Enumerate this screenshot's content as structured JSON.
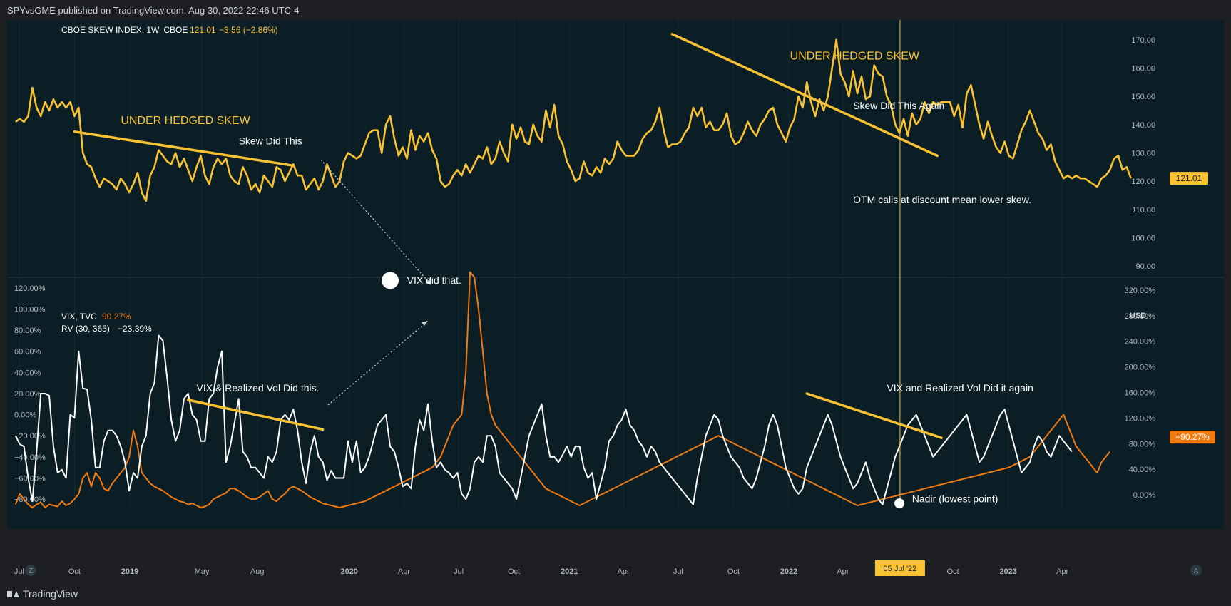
{
  "header": {
    "published": "SPYvsGME published on TradingView.com, Aug 30, 2022 22:46 UTC-4"
  },
  "footer": {
    "brand": "TradingView"
  },
  "colors": {
    "skew": "#f9c232",
    "vix": "#ffffff",
    "rv": "#f07a12",
    "trend": "#f9c232",
    "background": "#0b1e26"
  },
  "icons": {
    "brand": "tradingview-logo-icon",
    "zoom": "zoom-icon",
    "auto": "auto-scale-icon"
  },
  "controls": {
    "zoom_label": "Z",
    "auto_label": "A"
  },
  "chart_data": [
    {
      "type": "line",
      "legend": {
        "symbol": "CBOE SKEW INDEX, 1W, CBOE",
        "value": "121.01",
        "change": "−3.56 (−2.86%)"
      },
      "price_tag": "121.01",
      "y_ticks": [
        "170.00",
        "160.00",
        "150.00",
        "140.00",
        "130.00",
        "120.00",
        "110.00",
        "100.00",
        "90.00"
      ],
      "ylim": [
        86,
        177
      ],
      "series": [
        {
          "name": "CBOE SKEW INDEX",
          "x_start": "2018-06-25",
          "step_weeks": 1,
          "values": [
            141,
            142,
            141,
            143,
            153,
            146,
            143,
            148,
            145,
            149,
            146,
            148,
            146,
            148,
            143,
            146,
            130,
            126,
            125,
            121,
            118,
            121,
            120,
            119,
            117,
            121,
            119,
            116,
            119,
            123,
            116,
            113,
            122,
            125,
            131,
            129,
            127,
            126,
            130,
            125,
            128,
            124,
            120,
            125,
            129,
            122,
            119,
            125,
            128,
            126,
            128,
            122,
            120,
            119,
            125,
            122,
            117,
            119,
            116,
            122,
            120,
            118,
            125,
            124,
            120,
            123,
            126,
            122,
            122,
            117,
            119,
            121,
            117,
            120,
            126,
            122,
            118,
            120,
            127,
            130,
            129,
            128,
            129,
            133,
            137,
            138,
            138,
            130,
            140,
            143,
            135,
            129,
            132,
            128,
            138,
            131,
            136,
            134,
            137,
            131,
            128,
            120,
            118,
            119,
            122,
            124,
            122,
            126,
            123,
            126,
            129,
            128,
            132,
            126,
            128,
            134,
            130,
            127,
            140,
            135,
            139,
            134,
            133,
            140,
            136,
            134,
            145,
            139,
            147,
            136,
            133,
            127,
            124,
            120,
            121,
            127,
            123,
            122,
            125,
            123,
            128,
            126,
            128,
            134,
            131,
            129,
            129,
            129,
            131,
            135,
            137,
            138,
            141,
            146,
            138,
            132,
            133,
            133,
            134,
            137,
            139,
            146,
            143,
            146,
            139,
            141,
            138,
            138,
            140,
            144,
            136,
            133,
            134,
            137,
            141,
            138,
            136,
            140,
            142,
            145,
            146,
            140,
            137,
            134,
            139,
            142,
            150,
            146,
            155,
            148,
            143,
            149,
            145,
            150,
            160,
            170,
            158,
            155,
            150,
            159,
            151,
            157,
            149,
            150,
            161,
            158,
            157,
            150,
            147,
            140,
            137,
            142,
            136,
            144,
            140,
            142,
            148,
            144,
            148,
            147,
            148,
            148,
            148,
            143,
            147,
            139,
            151,
            154,
            147,
            140,
            135,
            141,
            136,
            132,
            130,
            134,
            129,
            128,
            133,
            138,
            141,
            145,
            141,
            137,
            135,
            131,
            133,
            127,
            124,
            121,
            122,
            121,
            122,
            121,
            121,
            120,
            119,
            118,
            121,
            122,
            124,
            128,
            129,
            124,
            125,
            121
          ]
        }
      ],
      "trendlines": [
        {
          "from": [
            "2018-10-01",
            137.5
          ],
          "to": [
            "2019-09-30",
            125.5
          ]
        },
        {
          "from": [
            "2021-06-21",
            172
          ],
          "to": [
            "2022-09-05",
            129
          ]
        }
      ],
      "annotations": [
        {
          "text": "UNDER HEDGED SKEW",
          "at": [
            "2018-12-17",
            140.2
          ],
          "color": "#f9c232",
          "size": "large"
        },
        {
          "text": "Skew Did This",
          "at": [
            "2019-07-01",
            133.0
          ],
          "color": "#ffffff"
        },
        {
          "text": "UNDER HEDGED SKEW",
          "at": [
            "2022-01-03",
            163.0
          ],
          "color": "#f9c232",
          "size": "large"
        },
        {
          "text": "Skew Did This Again",
          "at": [
            "2022-04-18",
            145.5
          ],
          "color": "#ffffff"
        },
        {
          "text": "OTM calls at discount mean lower skew.",
          "at": [
            "2022-04-18",
            112.2
          ],
          "color": "#ffffff"
        }
      ]
    },
    {
      "type": "line",
      "legend": {
        "vix_label": "VIX, TVC",
        "vix_value": "90.27%",
        "rv_label": "RV (30, 365)",
        "rv_value": "−23.39%"
      },
      "unit": "USD",
      "price_tag": "+90.27%",
      "y_ticks_left": [
        "120.00%",
        "100.00%",
        "80.00%",
        "60.00%",
        "40.00%",
        "20.00%",
        "0.00%",
        "−20.00%",
        "−40.00%",
        "−60.00%",
        "−80.00%"
      ],
      "y_ticks_right": [
        "320.00%",
        "280.00%",
        "240.00%",
        "200.00%",
        "160.00%",
        "120.00%",
        "80.00%",
        "40.00%",
        "0.00%"
      ],
      "ylim_left": [
        -88,
        130
      ],
      "series": [
        {
          "name": "VIX",
          "x_start": "2018-06-25",
          "step_weeks": 1,
          "values": [
            -20,
            -28,
            -30,
            -60,
            -82,
            -35,
            20,
            20,
            18,
            -30,
            -55,
            -52,
            -60,
            0,
            -3,
            60,
            25,
            24,
            -5,
            -50,
            -50,
            -25,
            -15,
            -15,
            -20,
            -30,
            -45,
            -72,
            -55,
            -60,
            -30,
            -20,
            20,
            30,
            75,
            70,
            35,
            -5,
            -25,
            -15,
            15,
            20,
            0,
            -5,
            -25,
            -25,
            15,
            20,
            45,
            60,
            -45,
            -30,
            -8,
            15,
            -35,
            -40,
            -50,
            -50,
            -55,
            -60,
            -40,
            -45,
            -35,
            -5,
            0,
            -5,
            5,
            -15,
            -45,
            -65,
            -35,
            -20,
            -40,
            -45,
            -62,
            -53,
            -60,
            -60,
            -60,
            -25,
            -45,
            -25,
            -55,
            -50,
            -40,
            -25,
            -10,
            -5,
            0,
            -30,
            -35,
            -50,
            -68,
            -65,
            -70,
            -30,
            -5,
            -15,
            10,
            -25,
            -50,
            -45,
            -52,
            -55,
            -60,
            -55,
            -75,
            -80,
            -70,
            -45,
            -40,
            -45,
            -20,
            -20,
            -30,
            -55,
            -60,
            -65,
            -70,
            -80,
            -60,
            -40,
            -20,
            -10,
            0,
            10,
            -20,
            -40,
            -40,
            -45,
            -38,
            -30,
            -40,
            -30,
            -30,
            -50,
            -60,
            -55,
            -80,
            -65,
            -50,
            -25,
            -20,
            -10,
            -5,
            5,
            -10,
            -15,
            -25,
            -30,
            -40,
            -30,
            -35,
            -45,
            -50,
            -55,
            -60,
            -65,
            -70,
            -75,
            -80,
            -85,
            -60,
            -40,
            -20,
            -10,
            0,
            -5,
            -20,
            -30,
            -40,
            -45,
            -50,
            -60,
            -65,
            -70,
            -60,
            -45,
            -30,
            -10,
            0,
            -10,
            -30,
            -50,
            -60,
            -70,
            -75,
            -70,
            -50,
            -40,
            -30,
            -20,
            -10,
            0,
            -10,
            -25,
            -40,
            -50,
            -60,
            -70,
            -65,
            -55,
            -45,
            -60,
            -70,
            -80,
            -85,
            -70,
            -55,
            -40,
            -30,
            -20,
            -10,
            -5,
            0,
            -10,
            -20,
            -30,
            -40,
            -35,
            -30,
            -25,
            -20,
            -15,
            -10,
            -5,
            0,
            -15,
            -30,
            -45,
            -40,
            -30,
            -20,
            -10,
            0,
            5,
            -10,
            -25,
            -40,
            -55,
            -50,
            -45,
            -30,
            -20,
            -25,
            -35,
            -40,
            -30,
            -20,
            -25,
            -30,
            -35
          ]
        },
        {
          "name": "RV (30, 365)",
          "x_start": "2018-06-25",
          "step_weeks": 1,
          "values": [
            -85,
            -75,
            -80,
            -85,
            -88,
            -85,
            -83,
            -88,
            -85,
            -86,
            -87,
            -82,
            -86,
            -84,
            -80,
            -75,
            -60,
            -55,
            -68,
            -55,
            -60,
            -70,
            -72,
            -65,
            -60,
            -55,
            -50,
            -40,
            -15,
            -30,
            -55,
            -60,
            -65,
            -68,
            -70,
            -72,
            -75,
            -78,
            -80,
            -82,
            -83,
            -85,
            -84,
            -86,
            -88,
            -87,
            -85,
            -80,
            -78,
            -76,
            -74,
            -70,
            -70,
            -72,
            -75,
            -78,
            -80,
            -80,
            -78,
            -75,
            -72,
            -80,
            -82,
            -78,
            -75,
            -70,
            -68,
            -70,
            -72,
            -75,
            -78,
            -80,
            -82,
            -84,
            -85,
            -86,
            -87,
            -88,
            -87,
            -86,
            -85,
            -84,
            -83,
            -82,
            -80,
            -78,
            -76,
            -74,
            -72,
            -70,
            -68,
            -66,
            -64,
            -62,
            -60,
            -58,
            -56,
            -54,
            -52,
            -50,
            -45,
            -40,
            -30,
            -20,
            -10,
            -5,
            0,
            40,
            135,
            130,
            100,
            60,
            20,
            0,
            -10,
            -15,
            -20,
            -25,
            -30,
            -35,
            -40,
            -45,
            -50,
            -55,
            -60,
            -65,
            -70,
            -72,
            -74,
            -76,
            -78,
            -80,
            -82,
            -84,
            -86,
            -84,
            -82,
            -80,
            -78,
            -76,
            -74,
            -72,
            -70,
            -68,
            -66,
            -64,
            -62,
            -60,
            -58,
            -56,
            -54,
            -52,
            -50,
            -48,
            -46,
            -44,
            -42,
            -40,
            -38,
            -36,
            -34,
            -32,
            -30,
            -28,
            -26,
            -24,
            -22,
            -20,
            -22,
            -24,
            -26,
            -28,
            -30,
            -32,
            -34,
            -36,
            -38,
            -40,
            -42,
            -44,
            -46,
            -48,
            -50,
            -52,
            -54,
            -56,
            -58,
            -60,
            -62,
            -64,
            -66,
            -68,
            -70,
            -72,
            -74,
            -76,
            -78,
            -80,
            -82,
            -84,
            -86,
            -85,
            -84,
            -83,
            -82,
            -81,
            -80,
            -79,
            -78,
            -77,
            -76,
            -75,
            -74,
            -73,
            -72,
            -71,
            -70,
            -69,
            -68,
            -67,
            -66,
            -65,
            -64,
            -63,
            -62,
            -61,
            -60,
            -59,
            -58,
            -57,
            -56,
            -55,
            -54,
            -53,
            -52,
            -51,
            -50,
            -48,
            -46,
            -44,
            -42,
            -40,
            -35,
            -30,
            -25,
            -20,
            -15,
            -10,
            -5,
            0,
            -10,
            -20,
            -30,
            -35,
            -40,
            -45,
            -50,
            -55,
            -45,
            -40,
            -35
          ]
        }
      ],
      "trendlines": [
        {
          "from": [
            "2019-04-08",
            14
          ],
          "to": [
            "2019-11-18",
            -14
          ]
        },
        {
          "from": [
            "2022-01-31",
            20
          ],
          "to": [
            "2022-09-12",
            -22
          ]
        }
      ],
      "markers": [
        {
          "at": [
            "2020-03-09",
            127
          ],
          "style": "filled-circle"
        },
        {
          "at": [
            "2022-07-04",
            -84
          ],
          "style": "filled-circle"
        }
      ],
      "annotations": [
        {
          "text": "VIX did that.",
          "at": [
            "2020-04-06",
            124
          ],
          "color": "#ffffff"
        },
        {
          "text": "VIX & Realized Vol Did this.",
          "at": [
            "2019-04-22",
            22
          ],
          "color": "#ffffff"
        },
        {
          "text": "VIX and Realized Vol Did it again",
          "at": [
            "2022-06-13",
            22
          ],
          "color": "#ffffff"
        },
        {
          "text": "Nadir (lowest point)",
          "at": [
            "2022-07-25",
            -83
          ],
          "color": "#ffffff"
        }
      ]
    }
  ],
  "x_axis": {
    "ticks": [
      {
        "label": "Jul",
        "date": "2018-07-01",
        "bold": false
      },
      {
        "label": "Oct",
        "date": "2018-10-01",
        "bold": false
      },
      {
        "label": "2019",
        "date": "2019-01-01",
        "bold": true
      },
      {
        "label": "May",
        "date": "2019-05-01",
        "bold": false
      },
      {
        "label": "Aug",
        "date": "2019-08-01",
        "bold": false
      },
      {
        "label": "2020",
        "date": "2020-01-01",
        "bold": true
      },
      {
        "label": "Apr",
        "date": "2020-04-01",
        "bold": false
      },
      {
        "label": "Jul",
        "date": "2020-07-01",
        "bold": false
      },
      {
        "label": "Oct",
        "date": "2020-10-01",
        "bold": false
      },
      {
        "label": "2021",
        "date": "2021-01-01",
        "bold": true
      },
      {
        "label": "Apr",
        "date": "2021-04-01",
        "bold": false
      },
      {
        "label": "Jul",
        "date": "2021-07-01",
        "bold": false
      },
      {
        "label": "Oct",
        "date": "2021-10-01",
        "bold": false
      },
      {
        "label": "2022",
        "date": "2022-01-01",
        "bold": true
      },
      {
        "label": "Apr",
        "date": "2022-04-01",
        "bold": false
      },
      {
        "label": "Oct",
        "date": "2022-10-01",
        "bold": false
      },
      {
        "label": "2023",
        "date": "2023-01-01",
        "bold": true
      },
      {
        "label": "Apr",
        "date": "2023-04-01",
        "bold": false
      }
    ],
    "crosshair": {
      "date": "2022-07-05",
      "label": "05 Jul '22"
    },
    "range": [
      "2018-06-11",
      "2023-06-20"
    ]
  }
}
